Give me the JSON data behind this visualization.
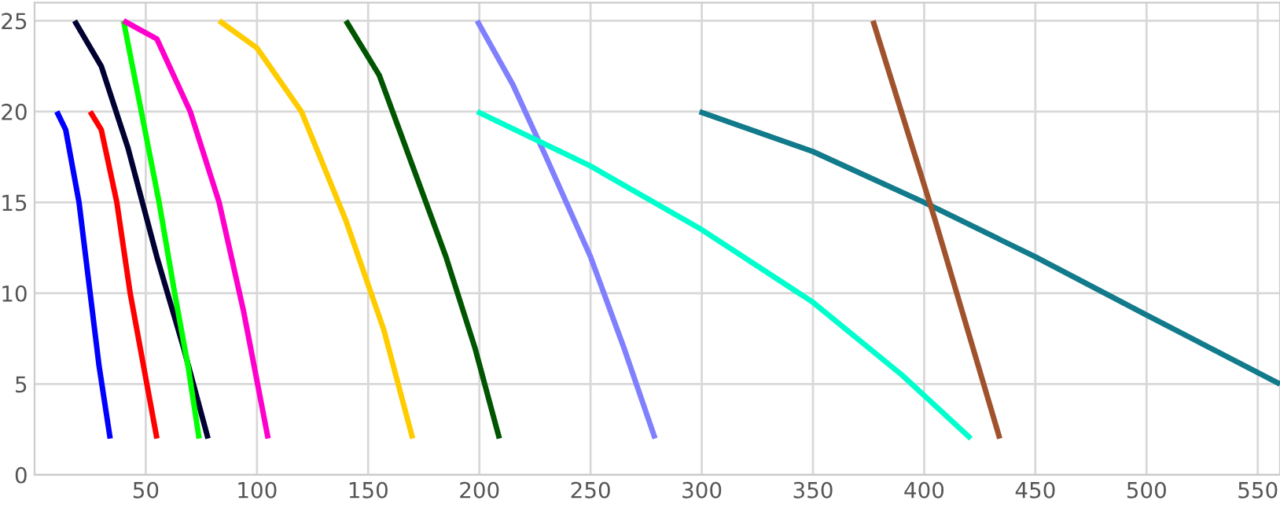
{
  "chart_data": {
    "type": "line",
    "xlim": [
      0,
      560
    ],
    "ylim": [
      0,
      26
    ],
    "xticks": [
      50,
      100,
      150,
      200,
      250,
      300,
      350,
      400,
      450,
      500,
      550
    ],
    "yticks": [
      0,
      5,
      10,
      15,
      20,
      25
    ],
    "grid": true,
    "marker": "none",
    "line_style": "solid",
    "series": [
      {
        "color": "#0000ff",
        "x": [
          10,
          14,
          20,
          25,
          29,
          34
        ],
        "values": [
          20,
          19,
          15,
          10,
          6,
          2
        ]
      },
      {
        "color": "#ff0000",
        "x": [
          25,
          30,
          37,
          43,
          49,
          55
        ],
        "values": [
          20,
          19,
          15,
          10,
          6,
          2
        ]
      },
      {
        "color": "#000033",
        "x": [
          18,
          30,
          42,
          55,
          67,
          78
        ],
        "values": [
          25,
          22.5,
          18,
          12,
          7,
          2
        ]
      },
      {
        "color": "#00ff00",
        "x": [
          40,
          48,
          56,
          63,
          69,
          74
        ],
        "values": [
          25,
          20,
          15,
          10,
          6,
          2
        ]
      },
      {
        "color": "#ff00cc",
        "x": [
          40,
          55,
          70,
          83,
          94,
          105
        ],
        "values": [
          25,
          24,
          20,
          15,
          9,
          2
        ]
      },
      {
        "color": "#ffcc00",
        "x": [
          83,
          100,
          120,
          140,
          157,
          170
        ],
        "values": [
          25,
          23.5,
          20,
          14,
          8,
          2
        ]
      },
      {
        "color": "#005500",
        "x": [
          140,
          155,
          170,
          185,
          198,
          209
        ],
        "values": [
          25,
          22,
          17,
          12,
          7,
          2
        ]
      },
      {
        "color": "#8080ff",
        "x": [
          199,
          215,
          230,
          250,
          265,
          279
        ],
        "values": [
          25,
          21.5,
          17.5,
          12,
          7,
          2
        ]
      },
      {
        "color": "#00ffcc",
        "x": [
          199,
          250,
          300,
          350,
          390,
          421
        ],
        "values": [
          20,
          17,
          13.5,
          9.5,
          5.5,
          2
        ]
      },
      {
        "color": "#117a8b",
        "x": [
          299,
          350,
          400,
          450,
          500,
          560
        ],
        "values": [
          20,
          17.8,
          15,
          12,
          8.8,
          5
        ]
      },
      {
        "color": "#a0522d",
        "x": [
          377,
          405,
          434
        ],
        "values": [
          25,
          14,
          2
        ]
      }
    ]
  }
}
